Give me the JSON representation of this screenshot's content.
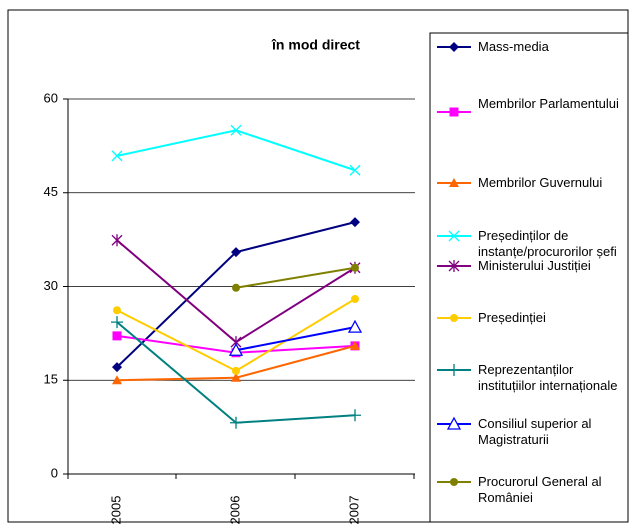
{
  "chart_data": {
    "type": "line",
    "title": "în mod direct",
    "categories": [
      "2005",
      "2006",
      "2007"
    ],
    "ylim": [
      0,
      60
    ],
    "yticks": [
      0,
      15,
      30,
      45,
      60
    ],
    "grid": true,
    "series": [
      {
        "name": "Mass-media",
        "color": "#000080",
        "marker": "diamond",
        "values": [
          17.1,
          35.5,
          40.3
        ]
      },
      {
        "name": "Membrilor Parlamentului",
        "color": "#FF00FF",
        "marker": "square",
        "values": [
          22.1,
          19.4,
          20.5
        ]
      },
      {
        "name": "Membrilor Guvernului",
        "color": "#FF6600",
        "marker": "triangle",
        "values": [
          15,
          15.4,
          20.5
        ]
      },
      {
        "name": "Președinților de instanțe/procurorilor șefi",
        "color": "#00FFFF",
        "marker": "x",
        "values": [
          50.9,
          55,
          48.6
        ]
      },
      {
        "name": "Ministerului Justiției",
        "color": "#800080",
        "marker": "star",
        "values": [
          37.4,
          21.1,
          33
        ]
      },
      {
        "name": "Președinției",
        "color": "#FFCC00",
        "marker": "circle",
        "values": [
          26.2,
          16.5,
          28
        ]
      },
      {
        "name": "Reprezentanților instituțiilor internaționale",
        "color": "#008080",
        "marker": "plus",
        "values": [
          24.3,
          8.2,
          9.4
        ]
      },
      {
        "name": "Consiliul superior al Magistraturii",
        "color": "#0000FF",
        "marker": "open-triangle",
        "values": [
          null,
          19.8,
          23.5
        ]
      },
      {
        "name": "Procurorul General al României",
        "color": "#808000",
        "marker": "circle",
        "values": [
          null,
          29.8,
          33
        ]
      }
    ]
  }
}
